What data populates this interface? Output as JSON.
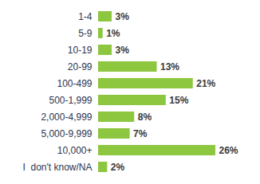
{
  "chart_data": {
    "type": "bar",
    "orientation": "horizontal",
    "categories": [
      "1-4",
      "5-9",
      "10-19",
      "20-99",
      "100-499",
      "500-1,999",
      "2,000-4,999",
      "5,000-9,999",
      "10,000+",
      "I  don't know/NA"
    ],
    "values": [
      3,
      1,
      3,
      13,
      21,
      15,
      8,
      7,
      26,
      2
    ],
    "value_labels": [
      "3%",
      "1%",
      "3%",
      "13%",
      "21%",
      "15%",
      "8%",
      "7%",
      "26%",
      "2%"
    ],
    "color": "#8dc63f",
    "data_labels": true,
    "tick_labels": "y",
    "grid": false
  }
}
